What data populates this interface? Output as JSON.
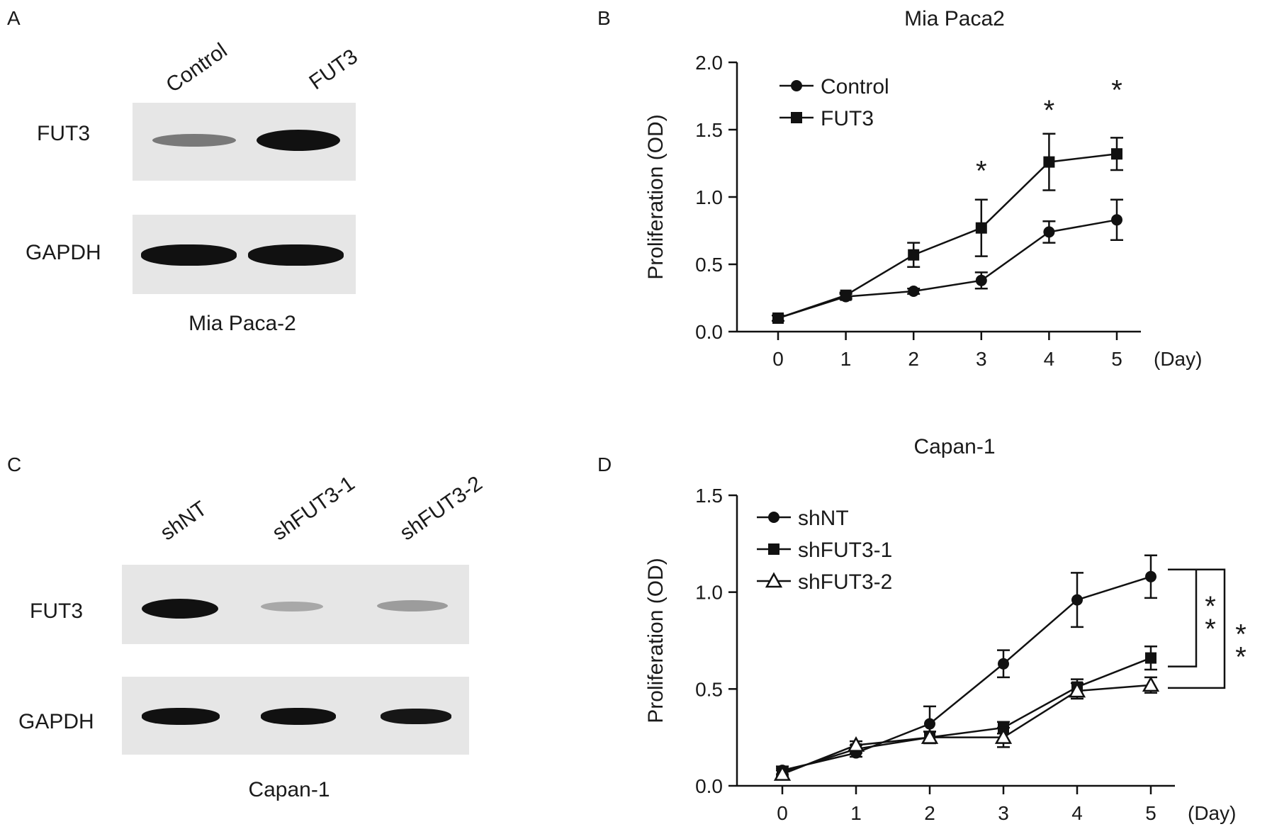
{
  "panels": {
    "A": {
      "letter": "A",
      "lanes": [
        "Control",
        "FUT3"
      ],
      "rows": [
        "FUT3",
        "GAPDH"
      ],
      "caption": "Mia Paca-2",
      "band_intensity": {
        "FUT3": [
          0.45,
          1.0
        ],
        "GAPDH": [
          1.0,
          1.0
        ]
      }
    },
    "B": {
      "letter": "B"
    },
    "C": {
      "letter": "C",
      "lanes": [
        "shNT",
        "shFUT3-1",
        "shFUT3-2"
      ],
      "rows": [
        "FUT3",
        "GAPDH"
      ],
      "caption": "Capan-1",
      "band_intensity": {
        "FUT3": [
          1.0,
          0.2,
          0.25
        ],
        "GAPDH": [
          0.95,
          0.95,
          0.9
        ]
      }
    },
    "D": {
      "letter": "D"
    }
  },
  "chart_data": [
    {
      "type": "line",
      "panel": "B",
      "title": "Mia Paca2",
      "xlabel": "(Day)",
      "ylabel": "Proliferation (OD)",
      "x": [
        0,
        1,
        2,
        3,
        4,
        5
      ],
      "x_ticks": [
        "0",
        "1",
        "2",
        "3",
        "4",
        "5"
      ],
      "ylim": [
        0,
        2.0
      ],
      "y_ticks": [
        "0.0",
        "0.5",
        "1.0",
        "1.5",
        "2.0"
      ],
      "legend_position": "top-left",
      "series": [
        {
          "name": "Control",
          "marker": "circle",
          "values": [
            0.1,
            0.26,
            0.3,
            0.38,
            0.74,
            0.83
          ],
          "errors": [
            0.02,
            0.02,
            0.02,
            0.06,
            0.08,
            0.15
          ]
        },
        {
          "name": "FUT3",
          "marker": "square",
          "values": [
            0.1,
            0.27,
            0.57,
            0.77,
            1.26,
            1.32
          ],
          "errors": [
            0.02,
            0.02,
            0.09,
            0.21,
            0.21,
            0.12
          ]
        }
      ],
      "annotations": [
        {
          "text": "*",
          "x": 3,
          "y": 1.25
        },
        {
          "text": "*",
          "x": 4,
          "y": 1.7
        },
        {
          "text": "*",
          "x": 5,
          "y": 1.85
        }
      ],
      "significance_color": "#2b3f70",
      "accent_color": "#c8963c"
    },
    {
      "type": "line",
      "panel": "D",
      "title": "Capan-1",
      "xlabel": "(Day)",
      "ylabel": "Proliferation (OD)",
      "x": [
        0,
        1,
        2,
        3,
        4,
        5
      ],
      "x_ticks": [
        "0",
        "1",
        "2",
        "3",
        "4",
        "5"
      ],
      "ylim": [
        0,
        1.5
      ],
      "y_ticks": [
        "0.0",
        "0.5",
        "1.0",
        "1.5"
      ],
      "legend_position": "top-left",
      "series": [
        {
          "name": "shNT",
          "marker": "circle",
          "values": [
            0.08,
            0.17,
            0.32,
            0.63,
            0.96,
            1.08
          ],
          "errors": [
            0.02,
            0.02,
            0.09,
            0.07,
            0.14,
            0.11
          ]
        },
        {
          "name": "shFUT3-1",
          "marker": "square",
          "values": [
            0.07,
            0.19,
            0.25,
            0.3,
            0.51,
            0.66
          ],
          "errors": [
            0.02,
            0.02,
            0.03,
            0.03,
            0.04,
            0.06
          ]
        },
        {
          "name": "shFUT3-2",
          "marker": "triangle",
          "values": [
            0.06,
            0.21,
            0.25,
            0.25,
            0.49,
            0.52
          ],
          "errors": [
            0.02,
            0.02,
            0.03,
            0.05,
            0.04,
            0.04
          ]
        }
      ],
      "brackets": [
        {
          "from_series": "shNT",
          "to_series": "shFUT3-1",
          "text": "**"
        },
        {
          "from_series": "shNT",
          "to_series": "shFUT3-2",
          "text": "**"
        }
      ],
      "significance_color": "#2b3f70"
    }
  ]
}
